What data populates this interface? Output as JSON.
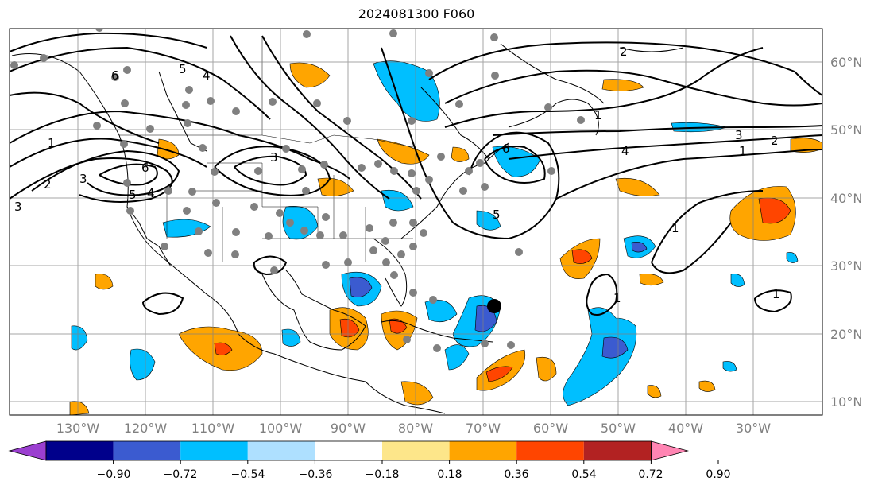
{
  "title": "2024081300 F060",
  "lat_labels": [
    "60°N",
    "50°N",
    "40°N",
    "30°N",
    "20°N",
    "10°N"
  ],
  "lon_labels": [
    "130°W",
    "120°W",
    "110°W",
    "100°W",
    "90°W",
    "80°W",
    "70°W",
    "60°W",
    "50°W",
    "40°W",
    "30°W"
  ],
  "colorbar": {
    "ticks": [
      "−0.90",
      "−0.72",
      "−0.54",
      "−0.36",
      "−0.18",
      "0.18",
      "0.36",
      "0.54",
      "0.72",
      "0.90"
    ],
    "colors": [
      "#9b3fd0",
      "#00008b",
      "#3b5bd0",
      "#00bfff",
      "#aee0ff",
      "#ffffff",
      "#fde68a",
      "#ffa500",
      "#ff4500",
      "#b22222",
      "#ff85b3"
    ]
  },
  "contour_labels": [
    "1",
    "2",
    "3",
    "4",
    "5",
    "6",
    "6",
    "5",
    "4",
    "3",
    "3",
    "2",
    "1",
    "1",
    "2",
    "3",
    "4",
    "5",
    "6",
    "1",
    "1",
    "1"
  ],
  "colors": {
    "contour": "#000000",
    "coast": "#000000",
    "grid": "#808080",
    "station": "#808080"
  }
}
